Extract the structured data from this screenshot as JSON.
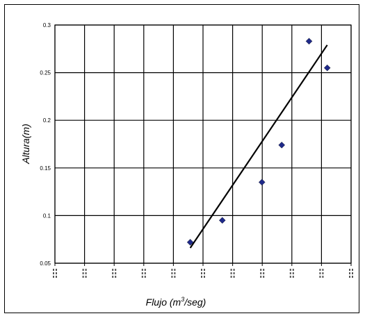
{
  "chart_data": {
    "type": "scatter",
    "title": "",
    "xlabel": "Flujo (m3/seg)",
    "xlabel_parts": {
      "before": "Flujo (m",
      "sup": "3",
      "after": "/seg)"
    },
    "ylabel": "Altura(m)",
    "ylim": [
      0.05,
      0.3
    ],
    "y_ticks": [
      0.05,
      0.1,
      0.15,
      0.2,
      0.25,
      0.3
    ],
    "y_tick_labels": [
      "0.05",
      "0.1",
      "0.15",
      "0.2",
      "0.25",
      "0.3"
    ],
    "x_scale": "log",
    "xlim": [
      0.0001,
      0.01
    ],
    "x_tick_labels_note": "x tick labels are illegible vertical text",
    "grid": true,
    "legend": "none",
    "marker": "diamond",
    "marker_color": "#1f2a8a",
    "series": [
      {
        "x": [
          0.00082,
          0.00135,
          0.0025,
          0.0034,
          0.0052,
          0.0069
        ],
        "y": [
          0.072,
          0.095,
          0.135,
          0.174,
          0.283,
          0.255
        ]
      }
    ],
    "trendline": {
      "x": [
        0.00082,
        0.0069
      ],
      "y": [
        0.066,
        0.279
      ],
      "color": "#000000"
    }
  }
}
